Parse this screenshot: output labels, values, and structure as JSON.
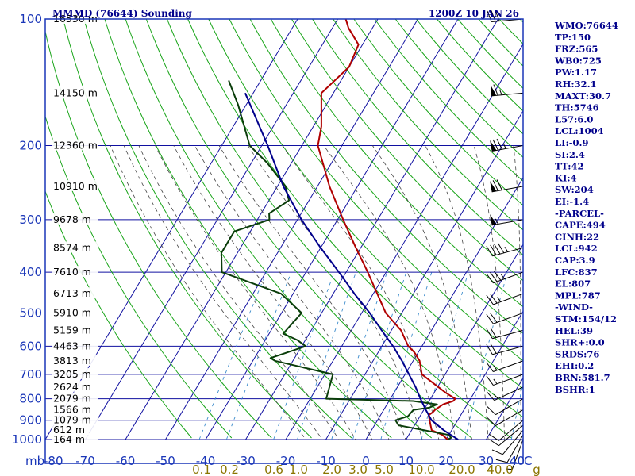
{
  "header": {
    "title": "MMMD (76644) Sounding",
    "time": "1200Z 10 JAN 26"
  },
  "chart_data": {
    "type": "line",
    "title": "MMMD (76644) Sounding",
    "valid_time": "1200Z 10 JAN 26",
    "x_axis": {
      "label": "C",
      "range": [
        -80,
        40
      ],
      "ticks": [
        -80,
        -70,
        -60,
        -50,
        -40,
        -30,
        -20,
        -10,
        0,
        10,
        20,
        30,
        40
      ]
    },
    "y_axis": {
      "label": "mb",
      "scale": "log-pressure",
      "range": [
        1000,
        100
      ],
      "ticks": [
        100,
        200,
        300,
        400,
        500,
        600,
        700,
        800,
        900,
        1000
      ]
    },
    "mixing_ratio_labels": [
      "0.1",
      "0.2",
      "0.6",
      "1.0",
      "2.0",
      "3.0",
      "5.0",
      "10.0",
      "20.0",
      "40.0",
      "g"
    ],
    "height_labels": [
      {
        "p": 100,
        "label": "16530 m"
      },
      {
        "p": 150,
        "label": "14150 m"
      },
      {
        "p": 200,
        "label": "12360 m"
      },
      {
        "p": 250,
        "label": "10910 m"
      },
      {
        "p": 300,
        "label": "9678 m"
      },
      {
        "p": 350,
        "label": "8574 m"
      },
      {
        "p": 400,
        "label": "7610 m"
      },
      {
        "p": 450,
        "label": "6713 m"
      },
      {
        "p": 500,
        "label": "5910 m"
      },
      {
        "p": 550,
        "label": "5159 m"
      },
      {
        "p": 600,
        "label": "4463 m"
      },
      {
        "p": 650,
        "label": "3813 m"
      },
      {
        "p": 700,
        "label": "3205 m"
      },
      {
        "p": 750,
        "label": "2624 m"
      },
      {
        "p": 800,
        "label": "2079 m"
      },
      {
        "p": 850,
        "label": "1566 m"
      },
      {
        "p": 900,
        "label": "1079 m"
      },
      {
        "p": 950,
        "label": "612 m"
      },
      {
        "p": 1000,
        "label": "164 m"
      }
    ],
    "series": [
      {
        "name": "Temperature",
        "color": "#b00000",
        "points": [
          [
            1000,
            20.4
          ],
          [
            975,
            18.4
          ],
          [
            950,
            15.0
          ],
          [
            925,
            14.0
          ],
          [
            900,
            13.0
          ],
          [
            875,
            12.0
          ],
          [
            860,
            12.6
          ],
          [
            850,
            12.8
          ],
          [
            825,
            14.0
          ],
          [
            810,
            16.0
          ],
          [
            800,
            16.2
          ],
          [
            775,
            13.0
          ],
          [
            700,
            4.2
          ],
          [
            650,
            1.6
          ],
          [
            620,
            -1.0
          ],
          [
            600,
            -3.4
          ],
          [
            550,
            -7.6
          ],
          [
            500,
            -14.0
          ],
          [
            400,
            -24.6
          ],
          [
            350,
            -31.2
          ],
          [
            300,
            -38.6
          ],
          [
            250,
            -47.0
          ],
          [
            200,
            -56.0
          ],
          [
            180,
            -58.0
          ],
          [
            150,
            -63.0
          ],
          [
            130,
            -60.0
          ],
          [
            115,
            -61.0
          ],
          [
            105,
            -66.0
          ],
          [
            100,
            -68.0
          ]
        ]
      },
      {
        "name": "Dewpoint",
        "color": "#0a3d0a",
        "points": [
          [
            1000,
            20.4
          ],
          [
            990,
            21.0
          ],
          [
            975,
            20.0
          ],
          [
            925,
            6.0
          ],
          [
            900,
            4.5
          ],
          [
            880,
            7.0
          ],
          [
            850,
            7.4
          ],
          [
            840,
            11.0
          ],
          [
            825,
            12.5
          ],
          [
            810,
            6.0
          ],
          [
            800,
            -16.0
          ],
          [
            700,
            -18.0
          ],
          [
            650,
            -34.5
          ],
          [
            640,
            -36.0
          ],
          [
            600,
            -29.0
          ],
          [
            580,
            -32.0
          ],
          [
            560,
            -36.5
          ],
          [
            500,
            -35.0
          ],
          [
            450,
            -43.0
          ],
          [
            400,
            -61.0
          ],
          [
            360,
            -64.0
          ],
          [
            320,
            -64.0
          ],
          [
            300,
            -57.0
          ],
          [
            290,
            -58.0
          ],
          [
            270,
            -55.0
          ],
          [
            250,
            -58.0
          ],
          [
            220,
            -66.0
          ],
          [
            200,
            -73.0
          ],
          [
            160,
            -82.0
          ],
          [
            140,
            -88.0
          ]
        ]
      },
      {
        "name": "Parcel",
        "color": "#00008b",
        "points": [
          [
            1000,
            23.0
          ],
          [
            975,
            20.5
          ],
          [
            950,
            18.0
          ],
          [
            900,
            13.5
          ],
          [
            850,
            10.5
          ],
          [
            800,
            7.5
          ],
          [
            750,
            4.5
          ],
          [
            700,
            1.0
          ],
          [
            650,
            -2.8
          ],
          [
            600,
            -7.2
          ],
          [
            550,
            -12.4
          ],
          [
            500,
            -18.0
          ],
          [
            450,
            -24.7
          ],
          [
            400,
            -31.8
          ],
          [
            350,
            -40.0
          ],
          [
            300,
            -49.0
          ],
          [
            250,
            -58.5
          ],
          [
            200,
            -68.5
          ],
          [
            150,
            -82.0
          ]
        ]
      }
    ],
    "wind_barbs": [
      {
        "p": 1000,
        "dir": 200,
        "spd": 5
      },
      {
        "p": 975,
        "dir": 210,
        "spd": 10
      },
      {
        "p": 950,
        "dir": 220,
        "spd": 10
      },
      {
        "p": 925,
        "dir": 230,
        "spd": 10
      },
      {
        "p": 900,
        "dir": 230,
        "spd": 10
      },
      {
        "p": 850,
        "dir": 240,
        "spd": 10
      },
      {
        "p": 800,
        "dir": 240,
        "spd": 10
      },
      {
        "p": 750,
        "dir": 245,
        "spd": 15
      },
      {
        "p": 700,
        "dir": 250,
        "spd": 15
      },
      {
        "p": 650,
        "dir": 250,
        "spd": 15
      },
      {
        "p": 600,
        "dir": 255,
        "spd": 20
      },
      {
        "p": 550,
        "dir": 255,
        "spd": 20
      },
      {
        "p": 500,
        "dir": 250,
        "spd": 20
      },
      {
        "p": 450,
        "dir": 250,
        "spd": 25
      },
      {
        "p": 400,
        "dir": 250,
        "spd": 35
      },
      {
        "p": 350,
        "dir": 255,
        "spd": 45
      },
      {
        "p": 300,
        "dir": 260,
        "spd": 55
      },
      {
        "p": 250,
        "dir": 260,
        "spd": 70
      },
      {
        "p": 200,
        "dir": 260,
        "spd": 75
      },
      {
        "p": 150,
        "dir": 265,
        "spd": 65
      },
      {
        "p": 100,
        "dir": 265,
        "spd": 30
      }
    ]
  },
  "indices": [
    "WMO:76644",
    "TP:150",
    "FRZ:565",
    "WB0:725",
    "PW:1.17",
    "RH:32.1",
    "MAXT:30.7",
    "TH:5746",
    "L57:6.0",
    "LCL:1004",
    "LI:-0.9",
    "SI:2.4",
    "TT:42",
    "KI:4",
    "SW:204",
    "EI:-1.4",
    "-PARCEL-",
    "CAPE:494",
    "CINH:22",
    "LCL:942",
    "CAP:3.9",
    "LFC:837",
    "EL:807",
    "MPL:787",
    "-WIND-",
    "STM:154/12",
    "HEL:39",
    "SHR+:0.0",
    "SRDS:76",
    "EHI:0.2",
    "BRN:581.7",
    "BSHR:1"
  ],
  "axis_units": {
    "pressure": "mb",
    "temperature": "C"
  },
  "colors": {
    "frame": "#1a36b8",
    "grid": "#1010a0",
    "dry_adiabat": "#1aa51a",
    "moist_adiabat": "#444444",
    "mixing_ratio": "#3c8ccc",
    "temperature": "#b00000",
    "dewpoint": "#0a3d0a",
    "parcel": "#00008b",
    "wind": "#000000",
    "text": "#00008b"
  }
}
